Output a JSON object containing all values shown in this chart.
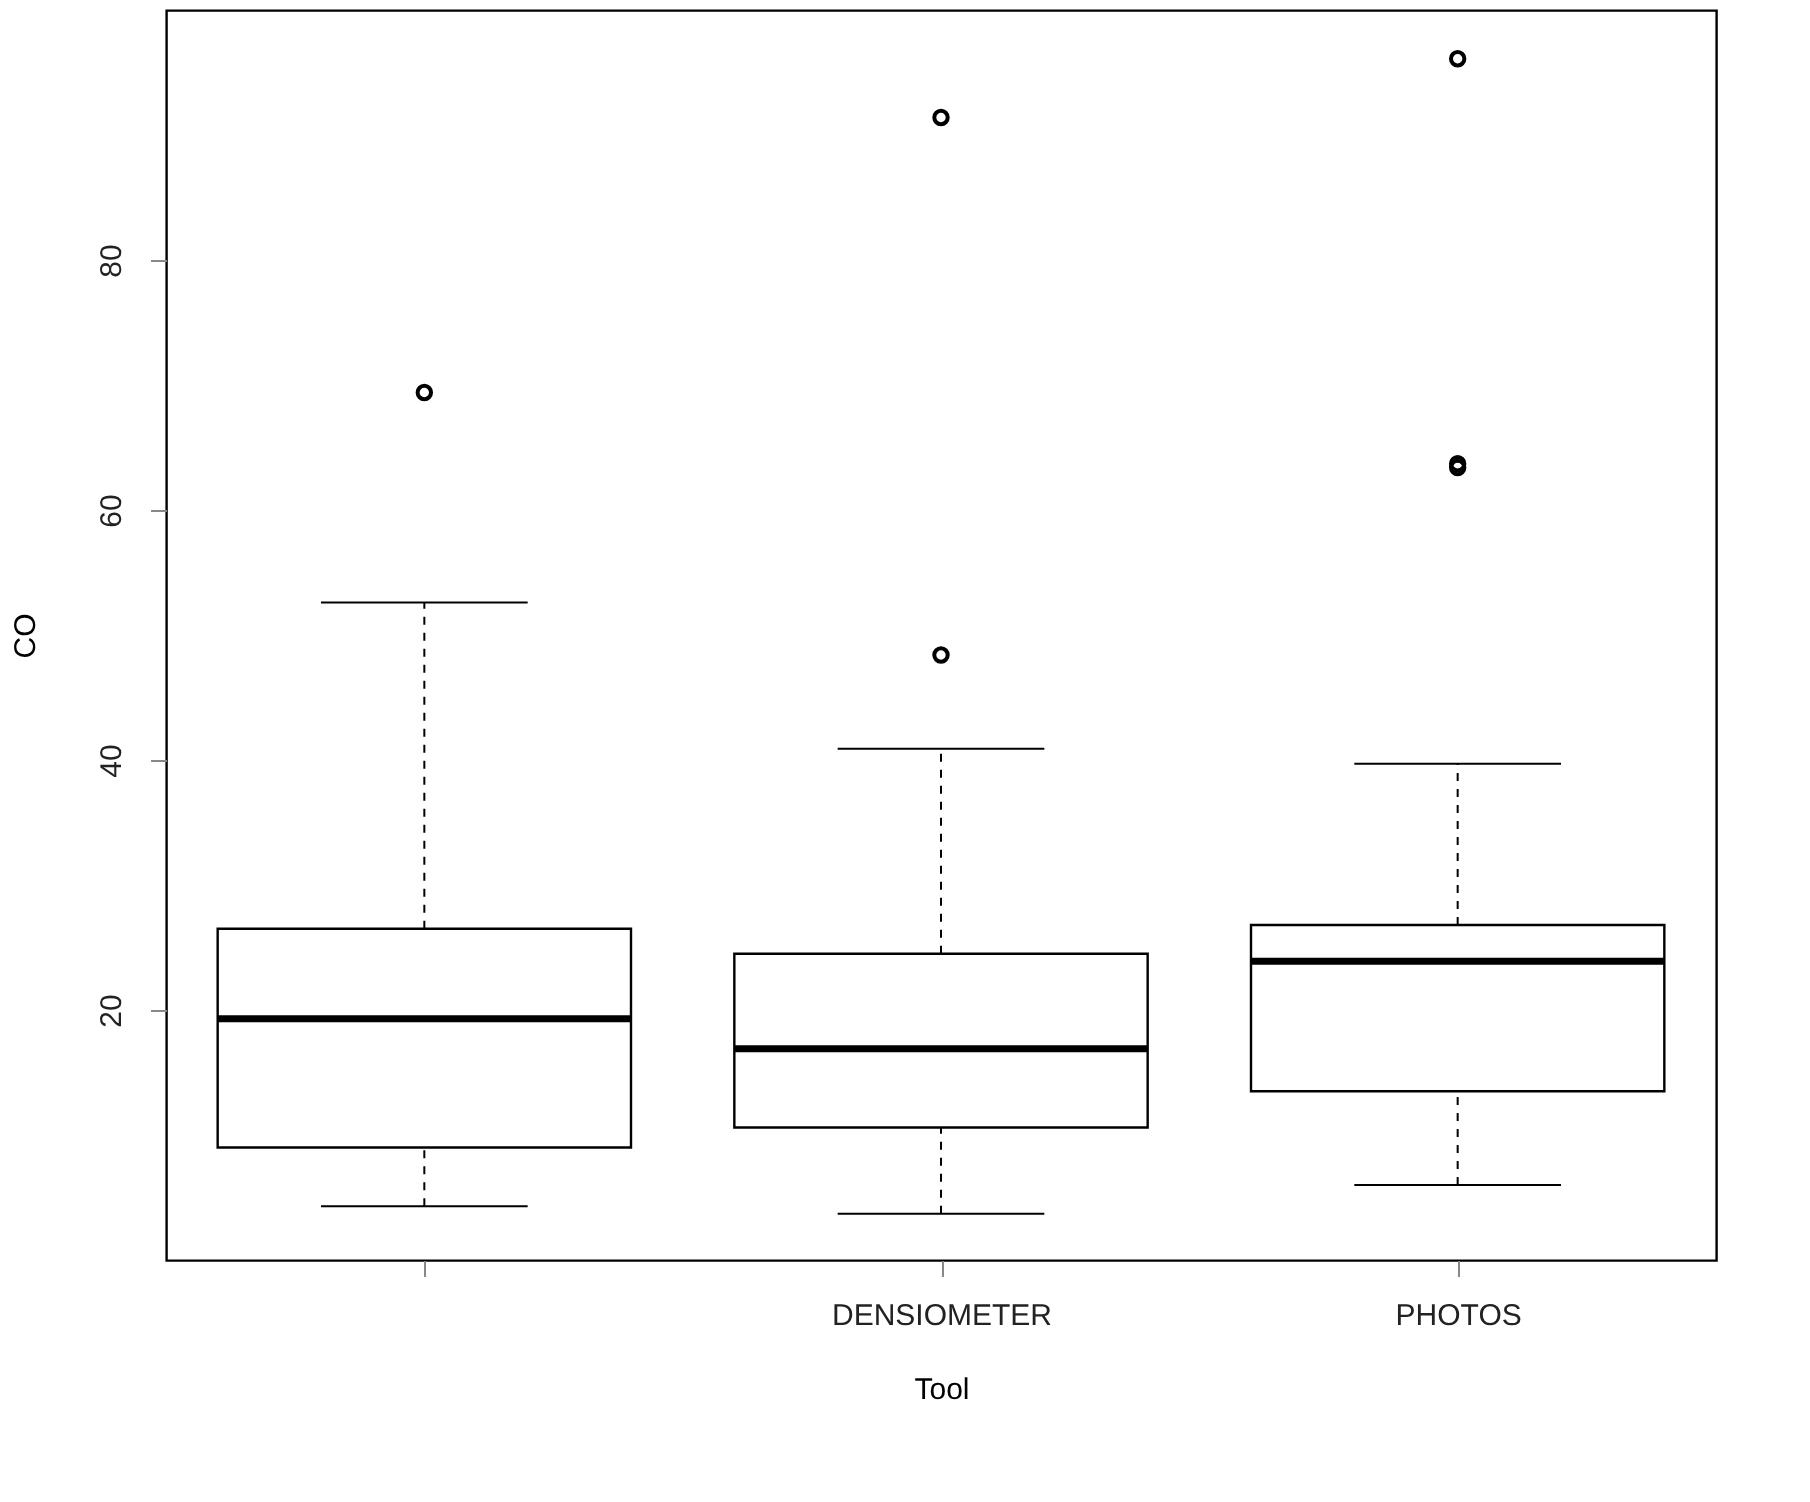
{
  "chart_data": {
    "type": "box",
    "xlabel": "Tool",
    "ylabel": "CO",
    "categories": [
      null,
      "DENSIOMETER",
      "PHOTOS"
    ],
    "boxes": [
      {
        "low": 4.3,
        "q1": 9.0,
        "median": 19.3,
        "q3": 26.5,
        "high": 52.6,
        "outliers": [
          69.4
        ]
      },
      {
        "low": 3.7,
        "q1": 10.6,
        "median": 16.9,
        "q3": 24.5,
        "high": 40.9,
        "outliers": [
          48.4,
          91.4
        ]
      },
      {
        "low": 6.0,
        "q1": 13.5,
        "median": 23.9,
        "q3": 26.8,
        "high": 39.7,
        "outliers": [
          63.4,
          63.7,
          96.1
        ]
      }
    ],
    "ylim": [
      0,
      100
    ],
    "yticks": [
      20,
      40,
      60,
      80
    ],
    "grid": false
  }
}
